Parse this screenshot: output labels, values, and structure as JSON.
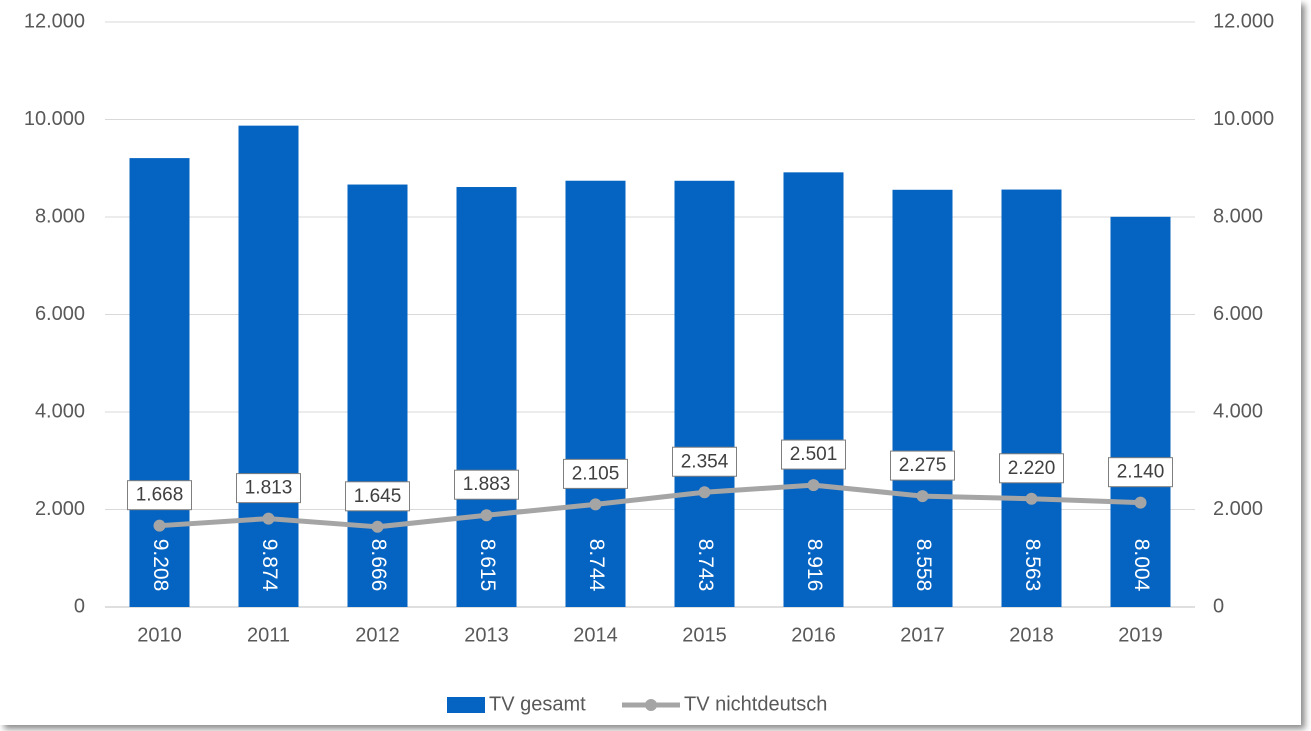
{
  "chart_data": {
    "type": "combo",
    "categories": [
      "2010",
      "2011",
      "2012",
      "2013",
      "2014",
      "2015",
      "2016",
      "2017",
      "2018",
      "2019"
    ],
    "series": [
      {
        "name": "TV gesamt",
        "type": "bar",
        "color": "#0563c1",
        "values": [
          9208,
          9874,
          8666,
          8615,
          8744,
          8743,
          8916,
          8558,
          8563,
          8004
        ],
        "value_labels": [
          "9.208",
          "9.874",
          "8.666",
          "8.615",
          "8.744",
          "8.743",
          "8.916",
          "8.558",
          "8.563",
          "8.004"
        ]
      },
      {
        "name": "TV nichtdeutsch",
        "type": "line",
        "axis": "y2",
        "color": "#a5a5a5",
        "values": [
          1668,
          1813,
          1645,
          1883,
          2105,
          2354,
          2501,
          2275,
          2220,
          2140
        ],
        "value_labels": [
          "1.668",
          "1.813",
          "1.645",
          "1.883",
          "2.105",
          "2.354",
          "2.501",
          "2.275",
          "2.220",
          "2.140"
        ]
      }
    ],
    "ylim": [
      0,
      12000
    ],
    "yticks": [
      0,
      {
        "value": 2000,
        "label": "2.000"
      },
      {
        "value": 4000,
        "label": "4.000"
      },
      {
        "value": 6000,
        "label": "6.000"
      },
      {
        "value": 8000,
        "label": "8.000"
      },
      {
        "value": 10000,
        "label": "10.000"
      },
      {
        "value": 12000,
        "label": "12.000"
      }
    ],
    "y2lim": [
      0,
      12000
    ],
    "y2ticks": [
      0,
      {
        "value": 2000,
        "label": "2.000"
      },
      {
        "value": 4000,
        "label": "4.000"
      },
      {
        "value": 6000,
        "label": "6.000"
      },
      {
        "value": 8000,
        "label": "8.000"
      },
      {
        "value": 10000,
        "label": "10.000"
      },
      {
        "value": 12000,
        "label": "12.000"
      }
    ],
    "grid": true,
    "legend": "bottom"
  }
}
